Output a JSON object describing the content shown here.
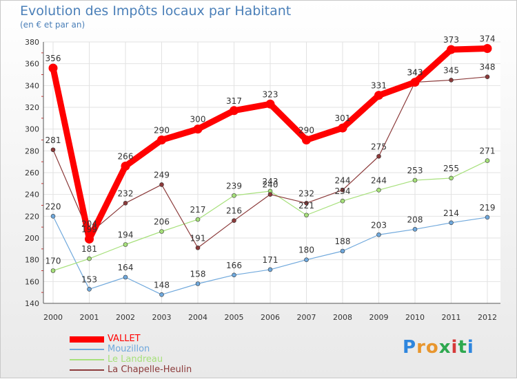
{
  "chart_data": {
    "type": "line",
    "title": "Evolution des Impôts locaux par Habitant",
    "subtitle": "(en € et par an)",
    "xlabel": "",
    "ylabel": "",
    "categories": [
      "2000",
      "2001",
      "2002",
      "2003",
      "2004",
      "2005",
      "2006",
      "2007",
      "2008",
      "2009",
      "2010",
      "2011",
      "2012"
    ],
    "ylim": [
      140,
      380
    ],
    "yticks": [
      "140",
      "160",
      "180",
      "200",
      "220",
      "240",
      "260",
      "280",
      "300",
      "320",
      "340",
      "360",
      "380"
    ],
    "grid": true,
    "legend_position": "bottom-left",
    "series": [
      {
        "name": "VALLET",
        "color": "#ff0000",
        "values": [
          356,
          199,
          266,
          290,
          300,
          317,
          323,
          290,
          301,
          331,
          343,
          373,
          374
        ],
        "labels": [
          "356",
          "199",
          "266",
          "290",
          "300",
          "317",
          "323",
          "290",
          "301",
          "331",
          "343",
          "373",
          "374"
        ]
      },
      {
        "name": "Mouzillon",
        "color": "#6fa8dc",
        "values": [
          220,
          153,
          164,
          148,
          158,
          166,
          171,
          180,
          188,
          203,
          208,
          214,
          219
        ],
        "labels": [
          "220",
          "153",
          "164",
          "148",
          "158",
          "166",
          "171",
          "180",
          "188",
          "203",
          "208",
          "214",
          "219"
        ]
      },
      {
        "name": "Le Landreau",
        "color": "#a6e07a",
        "values": [
          170,
          181,
          194,
          206,
          217,
          239,
          243,
          221,
          234,
          244,
          253,
          255,
          271
        ],
        "labels": [
          "170",
          "181",
          "194",
          "206",
          "217",
          "239",
          "243",
          "221",
          "234",
          "244",
          "253",
          "255",
          "271"
        ]
      },
      {
        "name": "La Chapelle-Heulin",
        "color": "#8b3a3a",
        "values": [
          281,
          204,
          232,
          249,
          191,
          216,
          240,
          232,
          244,
          275,
          343,
          345,
          348
        ],
        "labels": [
          "281",
          "204",
          "232",
          "249",
          "191",
          "216",
          "240",
          "232",
          "244",
          "275",
          "343",
          "345",
          "348"
        ]
      }
    ]
  },
  "branding": {
    "logo_letters": [
      "P",
      "r",
      "o",
      "x",
      "i",
      "t",
      "i"
    ],
    "logo_colors": [
      "#2e86de",
      "#e8962e",
      "#e8962e",
      "#2ea84f",
      "#d63a3a",
      "#2ea84f",
      "#2e86de"
    ]
  }
}
